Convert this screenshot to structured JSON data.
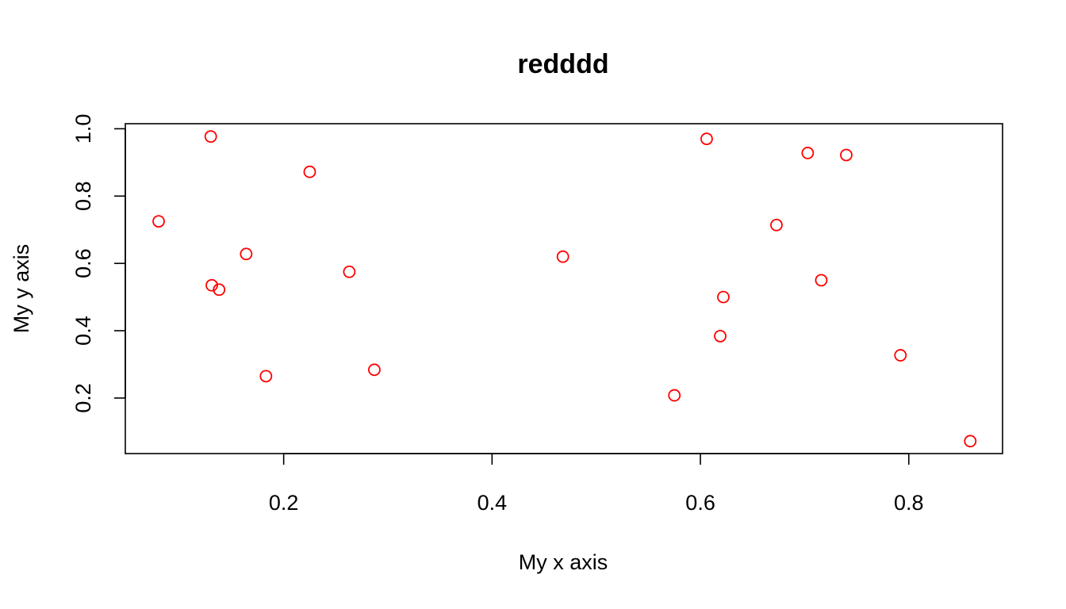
{
  "chart_data": {
    "type": "scatter",
    "title": "redddd",
    "xlabel": "My x axis",
    "ylabel": "My y axis",
    "xlim": [
      0.048,
      0.89
    ],
    "ylim": [
      0.035,
      1.015
    ],
    "x_ticks": [
      0.2,
      0.4,
      0.6,
      0.8
    ],
    "x_tick_labels": [
      "0.2",
      "0.4",
      "0.6",
      "0.8"
    ],
    "y_ticks": [
      0.2,
      0.4,
      0.6,
      0.8,
      1.0
    ],
    "y_tick_labels": [
      "0.2",
      "0.4",
      "0.6",
      "0.8",
      "1.0"
    ],
    "grid": false,
    "legend": "none",
    "point_color": "#ff0000",
    "point_shape": "open-circle",
    "points": [
      {
        "x": 0.08,
        "y": 0.725
      },
      {
        "x": 0.13,
        "y": 0.977
      },
      {
        "x": 0.131,
        "y": 0.535
      },
      {
        "x": 0.138,
        "y": 0.522
      },
      {
        "x": 0.164,
        "y": 0.628
      },
      {
        "x": 0.183,
        "y": 0.265
      },
      {
        "x": 0.225,
        "y": 0.872
      },
      {
        "x": 0.263,
        "y": 0.575
      },
      {
        "x": 0.287,
        "y": 0.284
      },
      {
        "x": 0.468,
        "y": 0.62
      },
      {
        "x": 0.575,
        "y": 0.208
      },
      {
        "x": 0.606,
        "y": 0.97
      },
      {
        "x": 0.619,
        "y": 0.384
      },
      {
        "x": 0.622,
        "y": 0.5
      },
      {
        "x": 0.673,
        "y": 0.714
      },
      {
        "x": 0.703,
        "y": 0.928
      },
      {
        "x": 0.716,
        "y": 0.55
      },
      {
        "x": 0.74,
        "y": 0.922
      },
      {
        "x": 0.792,
        "y": 0.327
      },
      {
        "x": 0.859,
        "y": 0.072
      }
    ]
  }
}
